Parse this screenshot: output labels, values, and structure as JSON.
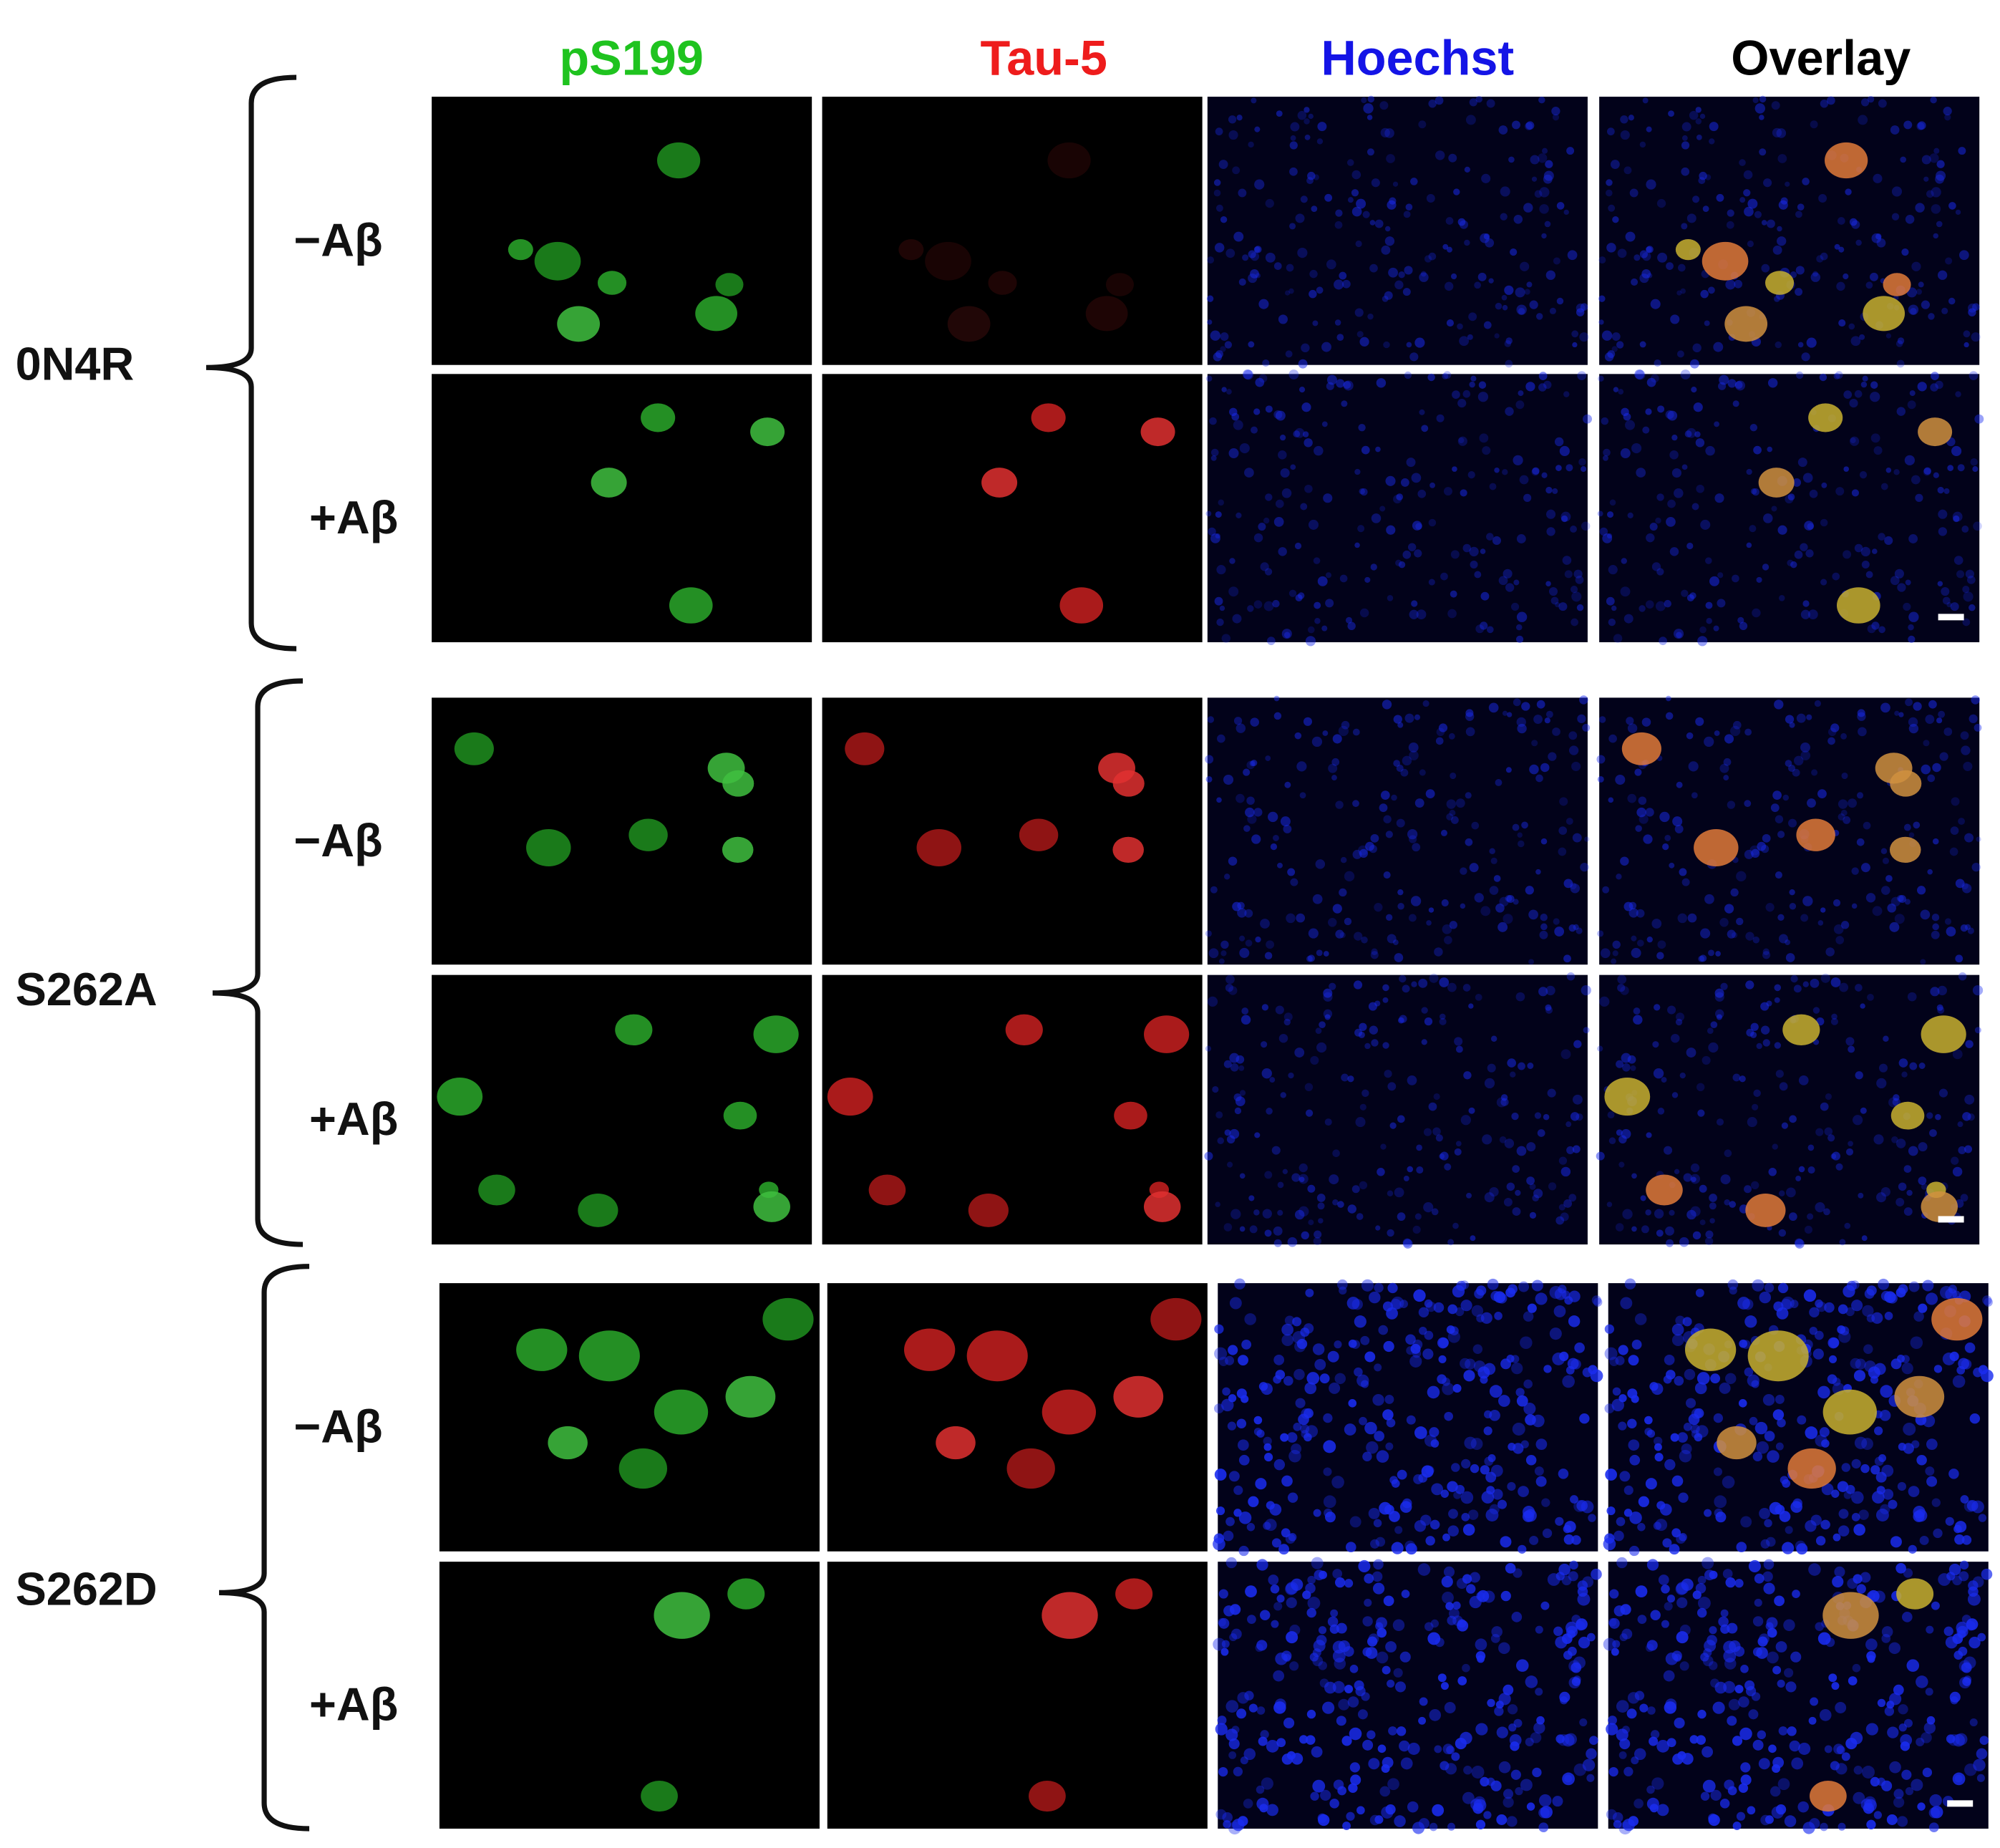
{
  "columns": [
    "pS199",
    "Tau-5",
    "Hoechst",
    "Overlay"
  ],
  "groups": [
    {
      "label": "0N4R",
      "rows": [
        "−Aβ",
        "+Aβ"
      ]
    },
    {
      "label": "S262A",
      "rows": [
        "−Aβ",
        "+Aβ"
      ]
    },
    {
      "label": "S262D",
      "rows": [
        "−Aβ",
        "+Aβ"
      ]
    }
  ]
}
